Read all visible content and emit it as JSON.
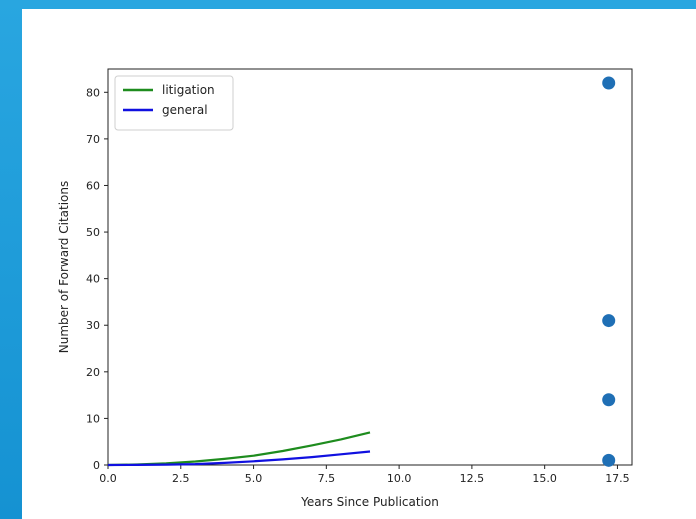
{
  "colors": {
    "frame": "#1a9ad6",
    "litigation": "#1e8c1e",
    "general": "#1010e0",
    "points": "#1f6fb5"
  },
  "chart_data": {
    "type": "line",
    "xlabel": "Years Since Publication",
    "ylabel": "Number of Forward Citations",
    "xlim": [
      0,
      18
    ],
    "ylim": [
      0,
      85
    ],
    "xticks": [
      0,
      2.5,
      5,
      7.5,
      10,
      12.5,
      15,
      17.5
    ],
    "xtick_labels": [
      "0.0",
      "2.5",
      "5.0",
      "7.5",
      "10.0",
      "12.5",
      "15.0",
      "17.5"
    ],
    "yticks": [
      0,
      10,
      20,
      30,
      40,
      50,
      60,
      70,
      80
    ],
    "ytick_labels": [
      "0",
      "10",
      "20",
      "30",
      "40",
      "50",
      "60",
      "70",
      "80"
    ],
    "grid": false,
    "legend_position": "top-left",
    "series": [
      {
        "name": "litigation",
        "type": "line",
        "color": "#1e8c1e",
        "x": [
          0,
          1,
          2,
          3,
          4,
          5,
          6,
          7,
          8,
          9
        ],
        "y": [
          0,
          0.1,
          0.35,
          0.75,
          1.3,
          2.0,
          3.0,
          4.2,
          5.5,
          7.0
        ]
      },
      {
        "name": "general",
        "type": "line",
        "color": "#1010e0",
        "x": [
          0,
          1,
          2,
          3,
          4,
          5,
          6,
          7,
          8,
          9
        ],
        "y": [
          0,
          0.02,
          0.08,
          0.2,
          0.45,
          0.8,
          1.2,
          1.7,
          2.3,
          2.9
        ]
      },
      {
        "type": "scatter",
        "color": "#1f6fb5",
        "x": [
          17.2,
          17.2,
          17.2,
          17.2
        ],
        "y": [
          82,
          31,
          14,
          1
        ]
      }
    ]
  }
}
